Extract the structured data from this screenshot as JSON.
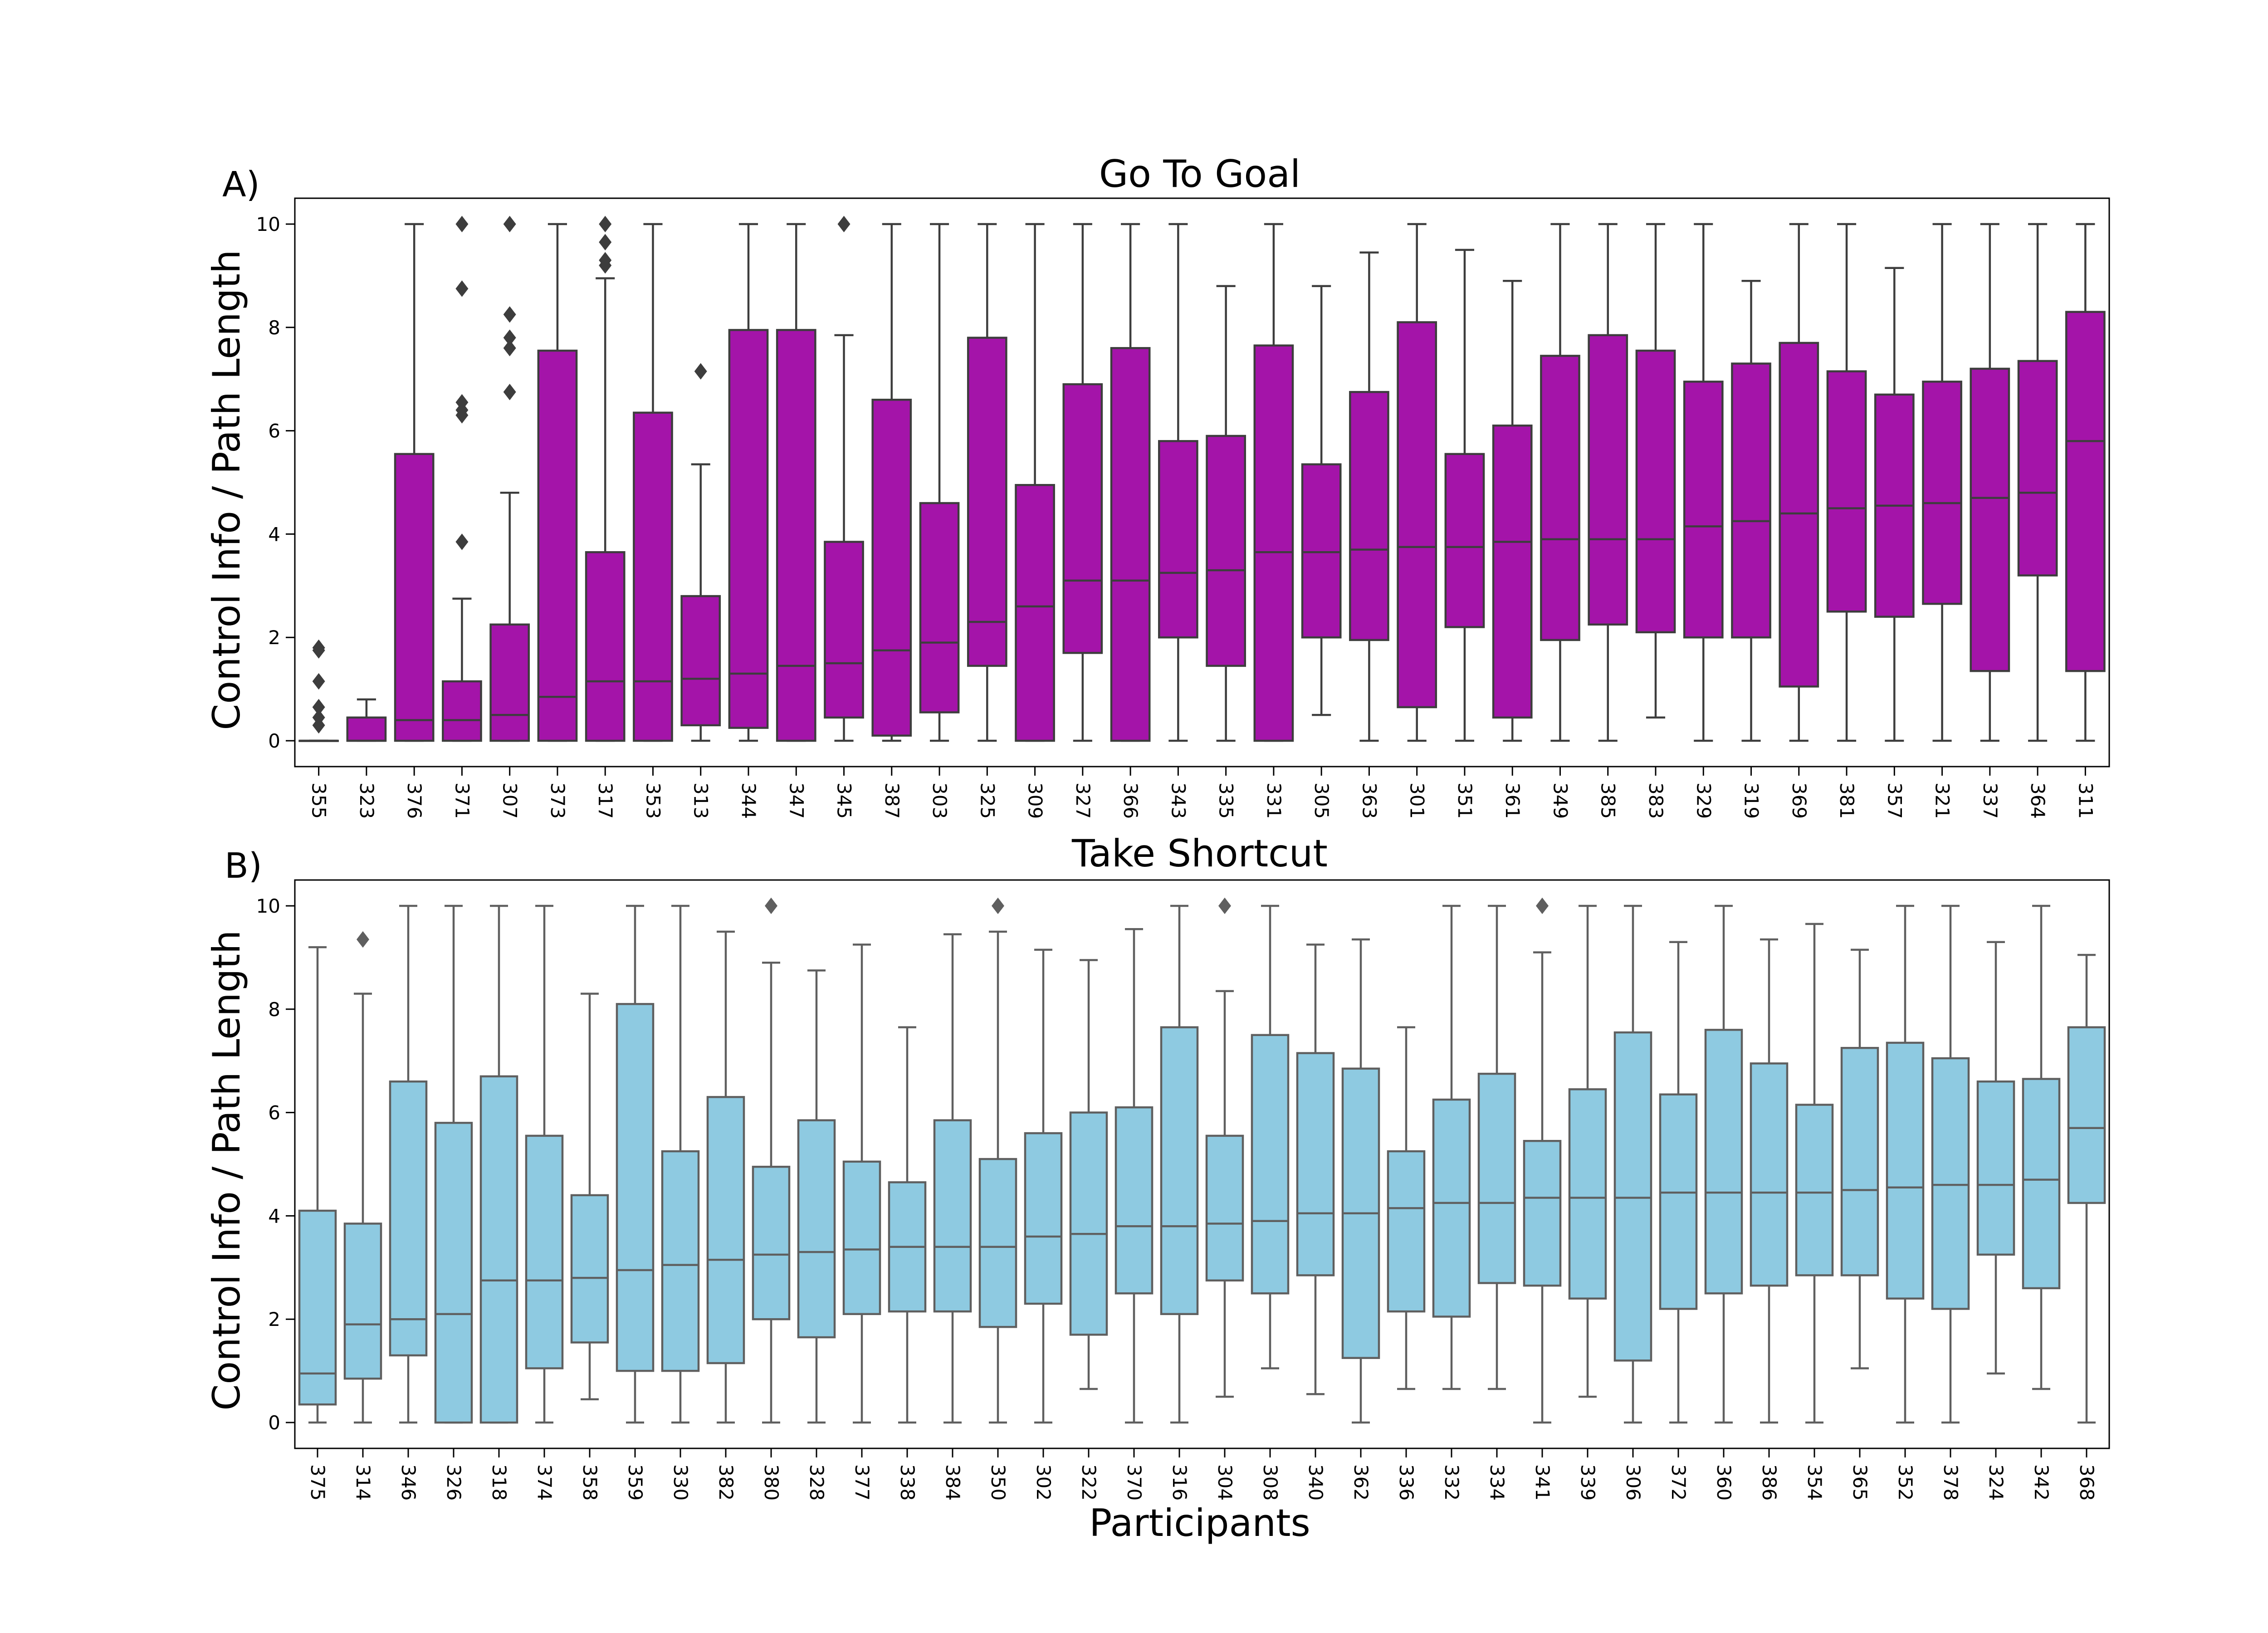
{
  "chart_data": [
    {
      "type": "box",
      "panel_label": "A)",
      "title": "Go To Goal",
      "xlabel": "",
      "ylabel": "Control Info / Path Length",
      "ylim": [
        -0.5,
        10.5
      ],
      "yticks": [
        0,
        2,
        4,
        6,
        8,
        10
      ],
      "box_color": "#a414a9",
      "line_color": "#3d3d3d",
      "categories": [
        "355",
        "323",
        "376",
        "371",
        "307",
        "373",
        "317",
        "353",
        "313",
        "344",
        "347",
        "345",
        "387",
        "303",
        "325",
        "309",
        "327",
        "366",
        "343",
        "335",
        "331",
        "305",
        "363",
        "301",
        "351",
        "361",
        "349",
        "385",
        "383",
        "329",
        "319",
        "369",
        "381",
        "357",
        "321",
        "337",
        "364",
        "311"
      ],
      "boxes": [
        {
          "q1": 0,
          "median": 0,
          "q3": 0,
          "whislo": 0,
          "whishi": 0,
          "fliers": [
            0.3,
            0.45,
            0.65,
            1.15,
            1.75,
            1.8
          ]
        },
        {
          "q1": 0,
          "median": 0,
          "q3": 0.45,
          "whislo": 0,
          "whishi": 0.8,
          "fliers": []
        },
        {
          "q1": 0,
          "median": 0.4,
          "q3": 5.55,
          "whislo": 0,
          "whishi": 10,
          "fliers": []
        },
        {
          "q1": 0,
          "median": 0.4,
          "q3": 1.15,
          "whislo": 0,
          "whishi": 2.75,
          "fliers": [
            3.85,
            6.3,
            6.4,
            6.55,
            8.75,
            10
          ]
        },
        {
          "q1": 0,
          "median": 0.5,
          "q3": 2.25,
          "whislo": 0,
          "whishi": 4.8,
          "fliers": [
            6.75,
            7.6,
            7.8,
            8.25,
            10
          ]
        },
        {
          "q1": 0,
          "median": 0.85,
          "q3": 7.55,
          "whislo": 0,
          "whishi": 10,
          "fliers": []
        },
        {
          "q1": 0,
          "median": 1.15,
          "q3": 3.65,
          "whislo": 0,
          "whishi": 8.95,
          "fliers": [
            9.2,
            9.3,
            9.65,
            10
          ]
        },
        {
          "q1": 0,
          "median": 1.15,
          "q3": 6.35,
          "whislo": 0,
          "whishi": 10,
          "fliers": []
        },
        {
          "q1": 0.3,
          "median": 1.2,
          "q3": 2.8,
          "whislo": 0,
          "whishi": 5.35,
          "fliers": [
            7.15
          ]
        },
        {
          "q1": 0.25,
          "median": 1.3,
          "q3": 7.95,
          "whislo": 0,
          "whishi": 10,
          "fliers": []
        },
        {
          "q1": 0,
          "median": 1.45,
          "q3": 7.95,
          "whislo": 0,
          "whishi": 10,
          "fliers": []
        },
        {
          "q1": 0.45,
          "median": 1.5,
          "q3": 3.85,
          "whislo": 0,
          "whishi": 7.85,
          "fliers": [
            10
          ]
        },
        {
          "q1": 0.1,
          "median": 1.75,
          "q3": 6.6,
          "whislo": 0,
          "whishi": 10,
          "fliers": []
        },
        {
          "q1": 0.55,
          "median": 1.9,
          "q3": 4.6,
          "whislo": 0,
          "whishi": 10,
          "fliers": []
        },
        {
          "q1": 1.45,
          "median": 2.3,
          "q3": 7.8,
          "whislo": 0,
          "whishi": 10,
          "fliers": []
        },
        {
          "q1": 0,
          "median": 2.6,
          "q3": 4.95,
          "whislo": 0,
          "whishi": 10,
          "fliers": []
        },
        {
          "q1": 1.7,
          "median": 3.1,
          "q3": 6.9,
          "whislo": 0,
          "whishi": 10,
          "fliers": []
        },
        {
          "q1": 0,
          "median": 3.1,
          "q3": 7.6,
          "whislo": 0,
          "whishi": 10,
          "fliers": []
        },
        {
          "q1": 2,
          "median": 3.25,
          "q3": 5.8,
          "whislo": 0,
          "whishi": 10,
          "fliers": []
        },
        {
          "q1": 1.45,
          "median": 3.3,
          "q3": 5.9,
          "whislo": 0,
          "whishi": 8.8,
          "fliers": []
        },
        {
          "q1": 0,
          "median": 3.65,
          "q3": 7.65,
          "whislo": 0,
          "whishi": 10,
          "fliers": []
        },
        {
          "q1": 2,
          "median": 3.65,
          "q3": 5.35,
          "whislo": 0.5,
          "whishi": 8.8,
          "fliers": []
        },
        {
          "q1": 1.95,
          "median": 3.7,
          "q3": 6.75,
          "whislo": 0,
          "whishi": 9.45,
          "fliers": []
        },
        {
          "q1": 0.65,
          "median": 3.75,
          "q3": 8.1,
          "whislo": 0,
          "whishi": 10,
          "fliers": []
        },
        {
          "q1": 2.2,
          "median": 3.75,
          "q3": 5.55,
          "whislo": 0,
          "whishi": 9.5,
          "fliers": []
        },
        {
          "q1": 0.45,
          "median": 3.85,
          "q3": 6.1,
          "whislo": 0,
          "whishi": 8.9,
          "fliers": []
        },
        {
          "q1": 1.95,
          "median": 3.9,
          "q3": 7.45,
          "whislo": 0,
          "whishi": 10,
          "fliers": []
        },
        {
          "q1": 2.25,
          "median": 3.9,
          "q3": 7.85,
          "whislo": 0,
          "whishi": 10,
          "fliers": []
        },
        {
          "q1": 2.1,
          "median": 3.9,
          "q3": 7.55,
          "whislo": 0.45,
          "whishi": 10,
          "fliers": []
        },
        {
          "q1": 2,
          "median": 4.15,
          "q3": 6.95,
          "whislo": 0,
          "whishi": 10,
          "fliers": []
        },
        {
          "q1": 2,
          "median": 4.25,
          "q3": 7.3,
          "whislo": 0,
          "whishi": 8.9,
          "fliers": []
        },
        {
          "q1": 1.05,
          "median": 4.4,
          "q3": 7.7,
          "whislo": 0,
          "whishi": 10,
          "fliers": []
        },
        {
          "q1": 2.5,
          "median": 4.5,
          "q3": 7.15,
          "whislo": 0,
          "whishi": 10,
          "fliers": []
        },
        {
          "q1": 2.4,
          "median": 4.55,
          "q3": 6.7,
          "whislo": 0,
          "whishi": 9.15,
          "fliers": []
        },
        {
          "q1": 2.65,
          "median": 4.6,
          "q3": 6.95,
          "whislo": 0,
          "whishi": 10,
          "fliers": []
        },
        {
          "q1": 1.35,
          "median": 4.7,
          "q3": 7.2,
          "whislo": 0,
          "whishi": 10,
          "fliers": []
        },
        {
          "q1": 3.2,
          "median": 4.8,
          "q3": 7.35,
          "whislo": 0,
          "whishi": 10,
          "fliers": []
        },
        {
          "q1": 1.35,
          "median": 5.8,
          "q3": 8.3,
          "whislo": 0,
          "whishi": 10,
          "fliers": []
        }
      ]
    },
    {
      "type": "box",
      "panel_label": "B)",
      "title": "Take Shortcut",
      "xlabel": "Participants",
      "ylabel": "Control Info / Path Length",
      "ylim": [
        -0.5,
        10.5
      ],
      "yticks": [
        0,
        2,
        4,
        6,
        8,
        10
      ],
      "box_color": "#8ecae1",
      "line_color": "#5f5f5f",
      "categories": [
        "375",
        "314",
        "346",
        "326",
        "318",
        "374",
        "358",
        "359",
        "330",
        "382",
        "380",
        "328",
        "377",
        "338",
        "384",
        "350",
        "302",
        "322",
        "370",
        "316",
        "304",
        "308",
        "340",
        "362",
        "336",
        "332",
        "334",
        "341",
        "339",
        "306",
        "372",
        "360",
        "386",
        "354",
        "365",
        "352",
        "378",
        "324",
        "342",
        "368"
      ],
      "boxes": [
        {
          "q1": 0.35,
          "median": 0.95,
          "q3": 4.1,
          "whislo": 0,
          "whishi": 9.2,
          "fliers": []
        },
        {
          "q1": 0.85,
          "median": 1.9,
          "q3": 3.85,
          "whislo": 0,
          "whishi": 8.3,
          "fliers": [
            9.35
          ]
        },
        {
          "q1": 1.3,
          "median": 2,
          "q3": 6.6,
          "whislo": 0,
          "whishi": 10,
          "fliers": []
        },
        {
          "q1": 0,
          "median": 2.1,
          "q3": 5.8,
          "whislo": 0,
          "whishi": 10,
          "fliers": []
        },
        {
          "q1": 0,
          "median": 2.75,
          "q3": 6.7,
          "whislo": 0,
          "whishi": 10,
          "fliers": []
        },
        {
          "q1": 1.05,
          "median": 2.75,
          "q3": 5.55,
          "whislo": 0,
          "whishi": 10,
          "fliers": []
        },
        {
          "q1": 1.55,
          "median": 2.8,
          "q3": 4.4,
          "whislo": 0.45,
          "whishi": 8.3,
          "fliers": []
        },
        {
          "q1": 1,
          "median": 2.95,
          "q3": 8.1,
          "whislo": 0,
          "whishi": 10,
          "fliers": []
        },
        {
          "q1": 1,
          "median": 3.05,
          "q3": 5.25,
          "whislo": 0,
          "whishi": 10,
          "fliers": []
        },
        {
          "q1": 1.15,
          "median": 3.15,
          "q3": 6.3,
          "whislo": 0,
          "whishi": 9.5,
          "fliers": []
        },
        {
          "q1": 2,
          "median": 3.25,
          "q3": 4.95,
          "whislo": 0,
          "whishi": 8.9,
          "fliers": [
            10
          ]
        },
        {
          "q1": 1.65,
          "median": 3.3,
          "q3": 5.85,
          "whislo": 0,
          "whishi": 8.75,
          "fliers": []
        },
        {
          "q1": 2.1,
          "median": 3.35,
          "q3": 5.05,
          "whislo": 0,
          "whishi": 9.25,
          "fliers": []
        },
        {
          "q1": 2.15,
          "median": 3.4,
          "q3": 4.65,
          "whislo": 0,
          "whishi": 7.65,
          "fliers": []
        },
        {
          "q1": 2.15,
          "median": 3.4,
          "q3": 5.85,
          "whislo": 0,
          "whishi": 9.45,
          "fliers": []
        },
        {
          "q1": 1.85,
          "median": 3.4,
          "q3": 5.1,
          "whislo": 0,
          "whishi": 9.5,
          "fliers": [
            10
          ]
        },
        {
          "q1": 2.3,
          "median": 3.6,
          "q3": 5.6,
          "whislo": 0,
          "whishi": 9.15,
          "fliers": []
        },
        {
          "q1": 1.7,
          "median": 3.65,
          "q3": 6,
          "whislo": 0.65,
          "whishi": 8.95,
          "fliers": []
        },
        {
          "q1": 2.5,
          "median": 3.8,
          "q3": 6.1,
          "whislo": 0,
          "whishi": 9.55,
          "fliers": []
        },
        {
          "q1": 2.1,
          "median": 3.8,
          "q3": 7.65,
          "whislo": 0,
          "whishi": 10,
          "fliers": []
        },
        {
          "q1": 2.75,
          "median": 3.85,
          "q3": 5.55,
          "whislo": 0.5,
          "whishi": 8.35,
          "fliers": [
            10
          ]
        },
        {
          "q1": 2.5,
          "median": 3.9,
          "q3": 7.5,
          "whislo": 1.05,
          "whishi": 10,
          "fliers": []
        },
        {
          "q1": 2.85,
          "median": 4.05,
          "q3": 7.15,
          "whislo": 0.55,
          "whishi": 9.25,
          "fliers": []
        },
        {
          "q1": 1.25,
          "median": 4.05,
          "q3": 6.85,
          "whislo": 0,
          "whishi": 9.35,
          "fliers": []
        },
        {
          "q1": 2.15,
          "median": 4.15,
          "q3": 5.25,
          "whislo": 0.65,
          "whishi": 7.65,
          "fliers": []
        },
        {
          "q1": 2.05,
          "median": 4.25,
          "q3": 6.25,
          "whislo": 0.65,
          "whishi": 10,
          "fliers": []
        },
        {
          "q1": 2.7,
          "median": 4.25,
          "q3": 6.75,
          "whislo": 0.65,
          "whishi": 10,
          "fliers": []
        },
        {
          "q1": 2.65,
          "median": 4.35,
          "q3": 5.45,
          "whislo": 0,
          "whishi": 9.1,
          "fliers": [
            10
          ]
        },
        {
          "q1": 2.4,
          "median": 4.35,
          "q3": 6.45,
          "whislo": 0.5,
          "whishi": 10,
          "fliers": []
        },
        {
          "q1": 1.2,
          "median": 4.35,
          "q3": 7.55,
          "whislo": 0,
          "whishi": 10,
          "fliers": []
        },
        {
          "q1": 2.2,
          "median": 4.45,
          "q3": 6.35,
          "whislo": 0,
          "whishi": 9.3,
          "fliers": []
        },
        {
          "q1": 2.5,
          "median": 4.45,
          "q3": 7.6,
          "whislo": 0,
          "whishi": 10,
          "fliers": []
        },
        {
          "q1": 2.65,
          "median": 4.45,
          "q3": 6.95,
          "whislo": 0,
          "whishi": 9.35,
          "fliers": []
        },
        {
          "q1": 2.85,
          "median": 4.45,
          "q3": 6.15,
          "whislo": 0,
          "whishi": 9.65,
          "fliers": []
        },
        {
          "q1": 2.85,
          "median": 4.5,
          "q3": 7.25,
          "whislo": 1.05,
          "whishi": 9.15,
          "fliers": []
        },
        {
          "q1": 2.4,
          "median": 4.55,
          "q3": 7.35,
          "whislo": 0,
          "whishi": 10,
          "fliers": []
        },
        {
          "q1": 2.2,
          "median": 4.6,
          "q3": 7.05,
          "whislo": 0,
          "whishi": 10,
          "fliers": []
        },
        {
          "q1": 3.25,
          "median": 4.6,
          "q3": 6.6,
          "whislo": 0.95,
          "whishi": 9.3,
          "fliers": []
        },
        {
          "q1": 2.6,
          "median": 4.7,
          "q3": 6.65,
          "whislo": 0.65,
          "whishi": 10,
          "fliers": []
        },
        {
          "q1": 4.25,
          "median": 5.7,
          "q3": 7.65,
          "whislo": 0,
          "whishi": 9.05,
          "fliers": []
        }
      ]
    }
  ]
}
